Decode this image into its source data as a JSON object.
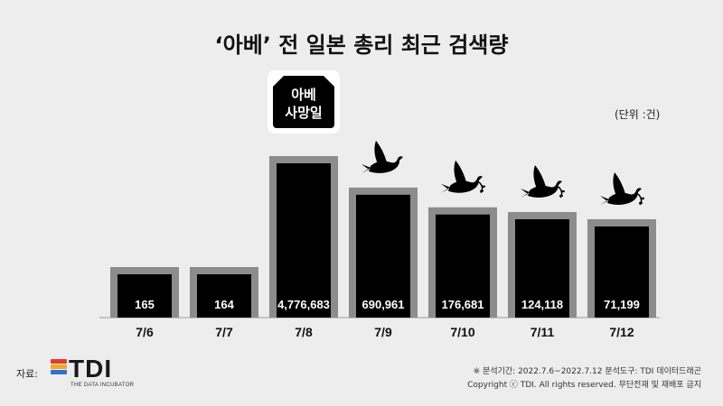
{
  "title": "‘아베’ 전 일본 총리 최근 검색량",
  "unit_label": "(단위 :건)",
  "annotation": "아베\n사망일",
  "source_label": "자료:",
  "logo": {
    "text": "TDI",
    "subtitle": "THE DATA INCUBATOR"
  },
  "footer": {
    "line1": "※ 분석기간: 2022.7.6~2022.7.12  분석도구: TDI 데이터드래곤",
    "line2": "Copyright ⓒ TDI. All rights reserved. 무단전재 및 재배포 금지"
  },
  "colors": {
    "background": "#ededed",
    "bar": "#000000",
    "bar_border": "#8c8c8c",
    "label_white": "#ffffff",
    "logo_stripes": [
      "#e8382e",
      "#f5a623",
      "#2f6fd8"
    ]
  },
  "icons": [
    "black-ribbon-badge-icon",
    "dove-icon",
    "dove-with-branch-icon"
  ],
  "chart_data": {
    "type": "bar",
    "title": "‘아베’ 전 일본 총리 최근 검색량",
    "xlabel": "",
    "ylabel": "",
    "categories": [
      "7/6",
      "7/7",
      "7/8",
      "7/9",
      "7/10",
      "7/11",
      "7/12"
    ],
    "values": [
      165,
      164,
      4776683,
      690961,
      176681,
      124118,
      71199
    ],
    "value_labels": [
      "165",
      "164",
      "4,776,683",
      "690,961",
      "176,681",
      "124,118",
      "71,199"
    ],
    "unit": "(단위 :건)",
    "scale": "non-linear (pictorial)",
    "grid": false,
    "legend": "none"
  }
}
